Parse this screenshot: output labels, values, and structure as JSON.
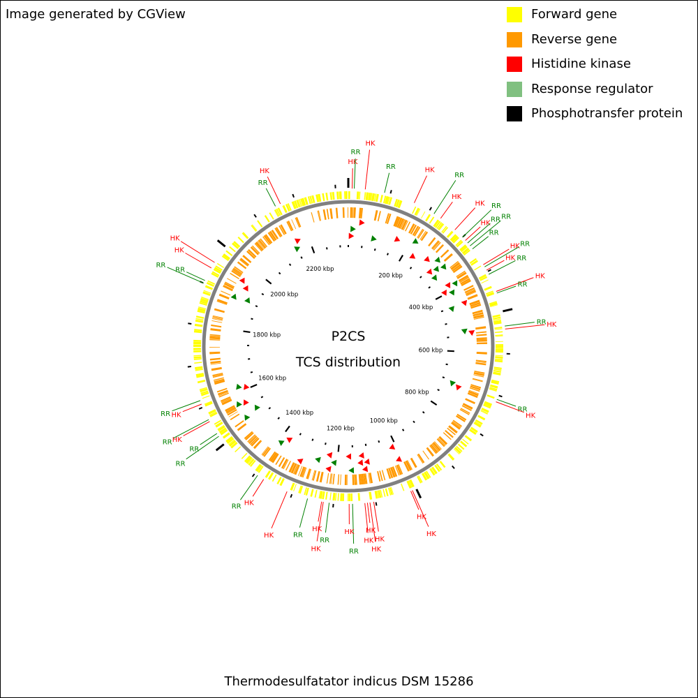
{
  "credit": "Image generated by CGView",
  "legend": [
    {
      "label": "Forward gene",
      "color": "#ffff00"
    },
    {
      "label": "Reverse gene",
      "color": "#ff9900"
    },
    {
      "label": "Histidine kinase",
      "color": "#ff0000"
    },
    {
      "label": "Response regulator",
      "color": "#80c080"
    },
    {
      "label": "Phosphotransfer protein",
      "color": "#000000"
    }
  ],
  "map": {
    "title_line1": "P2CS",
    "title_line2": "TCS distribution",
    "genome_length_kbp": 2330,
    "backbone_color": "#808080",
    "forward_color": "#ffff00",
    "reverse_color": "#ff9900",
    "hk_color": "#ff0000",
    "rr_color": "#008000",
    "ticks_kbp": [
      200,
      400,
      600,
      800,
      1000,
      1200,
      1400,
      1600,
      1800,
      2000,
      2200
    ],
    "tick_labels": [
      "200 kbp",
      "400 kbp",
      "600 kbp",
      "800 kbp",
      "1000 kbp",
      "1200 kbp",
      "1400 kbp",
      "1600 kbp",
      "1800 kbp",
      "2000 kbp",
      "2200 kbp"
    ],
    "features": [
      {
        "type": "HK",
        "label": "HK",
        "pos_kbp": 9
      },
      {
        "type": "RR",
        "label": "RR",
        "pos_kbp": 14
      },
      {
        "type": "HK",
        "label": "HK",
        "pos_kbp": 40
      },
      {
        "type": "RR",
        "label": "RR",
        "pos_kbp": 86
      },
      {
        "type": "HK",
        "label": "HK",
        "pos_kbp": 160
      },
      {
        "type": "RR",
        "label": "RR",
        "pos_kbp": 213
      },
      {
        "type": "HK",
        "label": "HK",
        "pos_kbp": 232
      },
      {
        "type": "HK",
        "label": "HK",
        "pos_kbp": 275
      },
      {
        "type": "RR",
        "label": "RR",
        "pos_kbp": 300
      },
      {
        "type": "HK",
        "label": "HK",
        "pos_kbp": 310
      },
      {
        "type": "RR",
        "label": "RR",
        "pos_kbp": 318
      },
      {
        "type": "RR",
        "label": "RR",
        "pos_kbp": 327
      },
      {
        "type": "RR",
        "label": "RR",
        "pos_kbp": 336
      },
      {
        "type": "HK",
        "label": "HK",
        "pos_kbp": 381
      },
      {
        "type": "RR",
        "label": "RR",
        "pos_kbp": 387
      },
      {
        "type": "HK",
        "label": "HK",
        "pos_kbp": 396
      },
      {
        "type": "RR",
        "label": "RR",
        "pos_kbp": 407
      },
      {
        "type": "HK",
        "label": "HK",
        "pos_kbp": 451
      },
      {
        "type": "RR",
        "label": "RR",
        "pos_kbp": 455
      },
      {
        "type": "RR",
        "label": "RR",
        "pos_kbp": 535
      },
      {
        "type": "HK",
        "label": "HK",
        "pos_kbp": 542
      },
      {
        "type": "RR",
        "label": "RR",
        "pos_kbp": 710
      },
      {
        "type": "HK",
        "label": "HK",
        "pos_kbp": 716
      },
      {
        "type": "HK",
        "label": "HK",
        "pos_kbp": 1010
      },
      {
        "type": "HK",
        "label": "HK",
        "pos_kbp": 1014
      },
      {
        "type": "HK",
        "label": "HK",
        "pos_kbp": 1105
      },
      {
        "type": "HK",
        "label": "HK",
        "pos_kbp": 1114
      },
      {
        "type": "HK",
        "label": "HK",
        "pos_kbp": 1120
      },
      {
        "type": "HK",
        "label": "HK",
        "pos_kbp": 1126
      },
      {
        "type": "RR",
        "label": "RR",
        "pos_kbp": 1155
      },
      {
        "type": "HK",
        "label": "HK",
        "pos_kbp": 1163
      },
      {
        "type": "RR",
        "label": "RR",
        "pos_kbp": 1210
      },
      {
        "type": "HK",
        "label": "HK",
        "pos_kbp": 1224
      },
      {
        "type": "HK",
        "label": "HK",
        "pos_kbp": 1228
      },
      {
        "type": "RR",
        "label": "RR",
        "pos_kbp": 1262
      },
      {
        "type": "HK",
        "label": "HK",
        "pos_kbp": 1313
      },
      {
        "type": "HK",
        "label": "HK",
        "pos_kbp": 1375
      },
      {
        "type": "RR",
        "label": "RR",
        "pos_kbp": 1392
      },
      {
        "type": "RR",
        "label": "RR",
        "pos_kbp": 1522
      },
      {
        "type": "RR",
        "label": "RR",
        "pos_kbp": 1530
      },
      {
        "type": "HK",
        "label": "HK",
        "pos_kbp": 1563
      },
      {
        "type": "RR",
        "label": "RR",
        "pos_kbp": 1568
      },
      {
        "type": "HK",
        "label": "HK",
        "pos_kbp": 1608
      },
      {
        "type": "RR",
        "label": "RR",
        "pos_kbp": 1617
      },
      {
        "type": "RR",
        "label": "RR",
        "pos_kbp": 1900
      },
      {
        "type": "RR",
        "label": "RR",
        "pos_kbp": 1907
      },
      {
        "type": "HK",
        "label": "HK",
        "pos_kbp": 1940
      },
      {
        "type": "HK",
        "label": "HK",
        "pos_kbp": 1955
      },
      {
        "type": "RR",
        "label": "RR",
        "pos_kbp": 2152
      },
      {
        "type": "HK",
        "label": "HK",
        "pos_kbp": 2165
      }
    ]
  },
  "caption": "Thermodesulfatator indicus DSM 15286"
}
